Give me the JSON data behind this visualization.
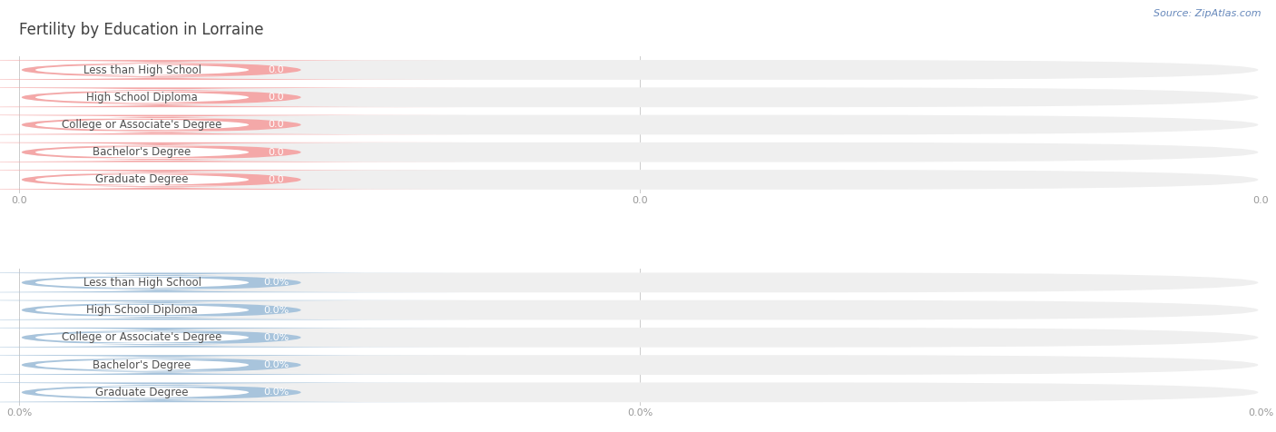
{
  "title": "Fertility by Education in Lorraine",
  "source": "Source: ZipAtlas.com",
  "categories": [
    "Less than High School",
    "High School Diploma",
    "College or Associate's Degree",
    "Bachelor's Degree",
    "Graduate Degree"
  ],
  "top_values": [
    0.0,
    0.0,
    0.0,
    0.0,
    0.0
  ],
  "bottom_values": [
    0.0,
    0.0,
    0.0,
    0.0,
    0.0
  ],
  "top_bar_color": "#f4a8a8",
  "bottom_bar_color": "#a8c4dc",
  "bar_bg_color": "#efefef",
  "background_color": "#ffffff",
  "title_color": "#404040",
  "title_fontsize": 12,
  "category_fontsize": 8.5,
  "value_fontsize": 8,
  "tick_fontsize": 8,
  "source_fontsize": 8,
  "source_color": "#6688bb"
}
